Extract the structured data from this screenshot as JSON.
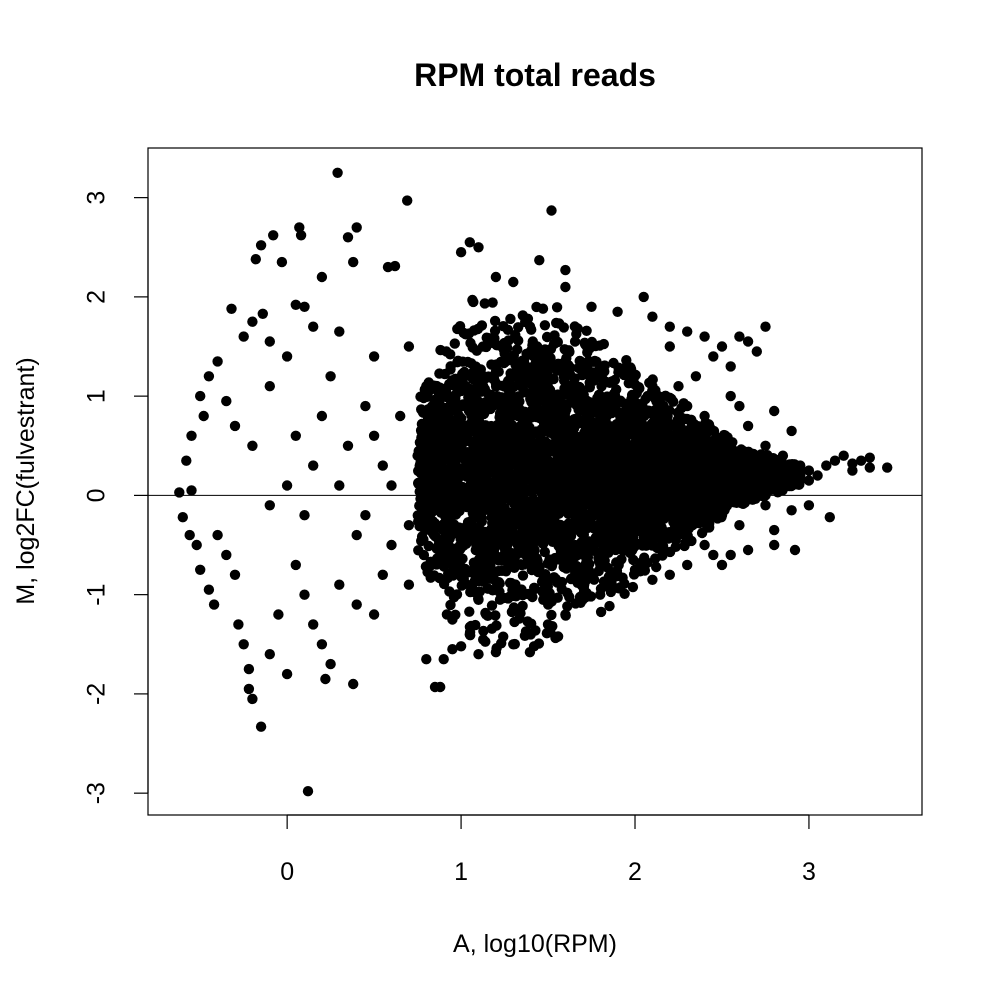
{
  "chart_data": {
    "type": "scatter",
    "title": "RPM total reads",
    "xlabel": "A, log10(RPM)",
    "ylabel": "M, log2FC(fulvestrant)",
    "xlim": [
      -0.8,
      3.65
    ],
    "ylim": [
      -3.22,
      3.5
    ],
    "xticks": [
      0,
      1,
      2,
      3
    ],
    "yticks": [
      -3,
      -2,
      -1,
      0,
      1,
      2,
      3
    ],
    "xtick_labels": [
      "0",
      "1",
      "2",
      "3"
    ],
    "ytick_labels": [
      "-3",
      "-2",
      "-1",
      "0",
      "1",
      "2",
      "3"
    ],
    "reference_line_y": 0,
    "grid": false,
    "legend": "none",
    "marker_color": "#000000",
    "points": [
      [
        0.29,
        3.25
      ],
      [
        0.69,
        2.97
      ],
      [
        1.52,
        2.87
      ],
      [
        0.07,
        2.7
      ],
      [
        0.08,
        2.62
      ],
      [
        0.4,
        2.7
      ],
      [
        -0.08,
        2.62
      ],
      [
        -0.15,
        2.52
      ],
      [
        0.35,
        2.6
      ],
      [
        0.2,
        2.2
      ],
      [
        0.38,
        2.35
      ],
      [
        0.62,
        2.31
      ],
      [
        -0.03,
        2.35
      ],
      [
        -0.18,
        2.38
      ],
      [
        1.45,
        2.37
      ],
      [
        1.6,
        2.27
      ],
      [
        0.58,
        2.3
      ],
      [
        -0.32,
        1.88
      ],
      [
        -0.14,
        1.83
      ],
      [
        0.05,
        1.92
      ],
      [
        -0.2,
        1.75
      ],
      [
        0.1,
        1.9
      ],
      [
        -0.25,
        1.6
      ],
      [
        -0.1,
        1.55
      ],
      [
        0.15,
        1.7
      ],
      [
        0.3,
        1.65
      ],
      [
        0.5,
        1.4
      ],
      [
        0.7,
        1.5
      ],
      [
        0.8,
        1.1
      ],
      [
        -0.4,
        1.35
      ],
      [
        -0.45,
        1.2
      ],
      [
        -0.5,
        1.0
      ],
      [
        -0.55,
        0.6
      ],
      [
        -0.48,
        0.8
      ],
      [
        -0.35,
        0.95
      ],
      [
        -0.3,
        0.7
      ],
      [
        -0.2,
        0.5
      ],
      [
        -0.1,
        1.1
      ],
      [
        0.0,
        1.4
      ],
      [
        0.05,
        0.6
      ],
      [
        0.2,
        0.8
      ],
      [
        0.25,
        1.2
      ],
      [
        0.35,
        0.5
      ],
      [
        0.45,
        0.9
      ],
      [
        0.55,
        0.3
      ],
      [
        0.65,
        0.8
      ],
      [
        0.75,
        0.4
      ],
      [
        -0.58,
        0.35
      ],
      [
        -0.55,
        0.05
      ],
      [
        -0.62,
        0.03
      ],
      [
        -0.6,
        -0.22
      ],
      [
        -0.56,
        -0.4
      ],
      [
        -0.52,
        -0.5
      ],
      [
        -0.5,
        -0.75
      ],
      [
        -0.45,
        -0.95
      ],
      [
        -0.42,
        -1.1
      ],
      [
        -0.4,
        -0.4
      ],
      [
        -0.35,
        -0.6
      ],
      [
        -0.3,
        -0.8
      ],
      [
        -0.28,
        -1.3
      ],
      [
        -0.25,
        -1.5
      ],
      [
        -0.22,
        -1.75
      ],
      [
        -0.22,
        -1.95
      ],
      [
        -0.2,
        -2.05
      ],
      [
        -0.15,
        -2.33
      ],
      [
        -0.1,
        -1.6
      ],
      [
        -0.05,
        -1.2
      ],
      [
        0.0,
        -1.8
      ],
      [
        0.05,
        -0.7
      ],
      [
        0.1,
        -1.0
      ],
      [
        0.12,
        -2.98
      ],
      [
        0.15,
        -1.3
      ],
      [
        0.2,
        -1.5
      ],
      [
        0.25,
        -1.7
      ],
      [
        0.22,
        -1.85
      ],
      [
        0.38,
        -1.9
      ],
      [
        0.3,
        -0.9
      ],
      [
        0.4,
        -1.1
      ],
      [
        0.5,
        -1.2
      ],
      [
        0.55,
        -0.8
      ],
      [
        0.6,
        -0.5
      ],
      [
        0.7,
        -0.9
      ],
      [
        0.8,
        -1.65
      ],
      [
        0.85,
        -1.93
      ],
      [
        0.88,
        -1.93
      ],
      [
        0.9,
        -1.65
      ],
      [
        0.95,
        -1.55
      ],
      [
        0.1,
        -0.2
      ],
      [
        0.0,
        0.1
      ],
      [
        -0.1,
        -0.1
      ],
      [
        0.3,
        0.1
      ],
      [
        0.45,
        -0.2
      ],
      [
        0.6,
        0.1
      ],
      [
        0.7,
        -0.3
      ],
      [
        0.5,
        0.6
      ],
      [
        0.15,
        0.3
      ],
      [
        0.4,
        -0.4
      ],
      [
        1.05,
        2.55
      ],
      [
        1.1,
        2.5
      ],
      [
        1.0,
        2.45
      ],
      [
        1.2,
        2.2
      ],
      [
        1.3,
        2.15
      ],
      [
        1.6,
        2.1
      ],
      [
        1.75,
        1.9
      ],
      [
        1.9,
        1.85
      ],
      [
        2.05,
        2.0
      ],
      [
        2.1,
        1.8
      ],
      [
        2.2,
        1.7
      ],
      [
        2.3,
        1.65
      ],
      [
        2.4,
        1.6
      ],
      [
        2.5,
        1.5
      ],
      [
        2.6,
        1.6
      ],
      [
        2.65,
        1.55
      ],
      [
        2.75,
        1.7
      ],
      [
        2.55,
        1.3
      ],
      [
        2.45,
        1.4
      ],
      [
        2.35,
        1.2
      ],
      [
        2.25,
        1.1
      ],
      [
        2.7,
        1.45
      ],
      [
        2.2,
        1.5
      ],
      [
        2.3,
        0.9
      ],
      [
        2.4,
        0.8
      ],
      [
        2.55,
        1.0
      ],
      [
        2.6,
        0.9
      ],
      [
        2.65,
        0.7
      ],
      [
        2.8,
        0.85
      ],
      [
        2.9,
        0.65
      ],
      [
        2.75,
        0.5
      ],
      [
        2.85,
        0.4
      ],
      [
        2.95,
        0.3
      ],
      [
        3.0,
        0.25
      ],
      [
        3.05,
        0.2
      ],
      [
        3.1,
        0.3
      ],
      [
        3.15,
        0.35
      ],
      [
        3.2,
        0.4
      ],
      [
        3.25,
        0.32
      ],
      [
        3.3,
        0.35
      ],
      [
        3.35,
        0.28
      ],
      [
        3.45,
        0.28
      ],
      [
        3.35,
        0.38
      ],
      [
        3.25,
        0.25
      ],
      [
        3.0,
        0.15
      ],
      [
        2.85,
        0.2
      ],
      [
        2.7,
        0.15
      ],
      [
        2.6,
        0.1
      ],
      [
        2.75,
        -0.1
      ],
      [
        2.9,
        -0.15
      ],
      [
        3.0,
        -0.1
      ],
      [
        3.12,
        -0.22
      ],
      [
        2.8,
        -0.35
      ],
      [
        2.92,
        -0.55
      ],
      [
        2.8,
        -0.5
      ],
      [
        2.65,
        -0.55
      ],
      [
        2.55,
        -0.6
      ],
      [
        2.5,
        -0.7
      ],
      [
        2.45,
        -0.6
      ],
      [
        2.4,
        -0.5
      ],
      [
        2.3,
        -0.7
      ],
      [
        2.2,
        -0.8
      ],
      [
        2.1,
        -0.85
      ],
      [
        2.0,
        -0.75
      ],
      [
        1.9,
        -0.8
      ],
      [
        1.8,
        -1.0
      ],
      [
        1.7,
        -1.05
      ],
      [
        1.6,
        -1.2
      ],
      [
        1.5,
        -1.3
      ],
      [
        1.4,
        -1.4
      ],
      [
        1.3,
        -1.5
      ],
      [
        1.2,
        -1.58
      ],
      [
        1.1,
        -1.6
      ],
      [
        1.0,
        -1.52
      ],
      [
        1.05,
        -1.4
      ],
      [
        0.95,
        -1.25
      ],
      [
        2.6,
        -0.3
      ],
      [
        2.5,
        -0.2
      ],
      [
        2.7,
        0.0
      ]
    ],
    "dense_cloud": {
      "x_range": [
        0.75,
        2.95
      ],
      "centered_at_y": 0.2,
      "approx_points": 10000
    }
  }
}
